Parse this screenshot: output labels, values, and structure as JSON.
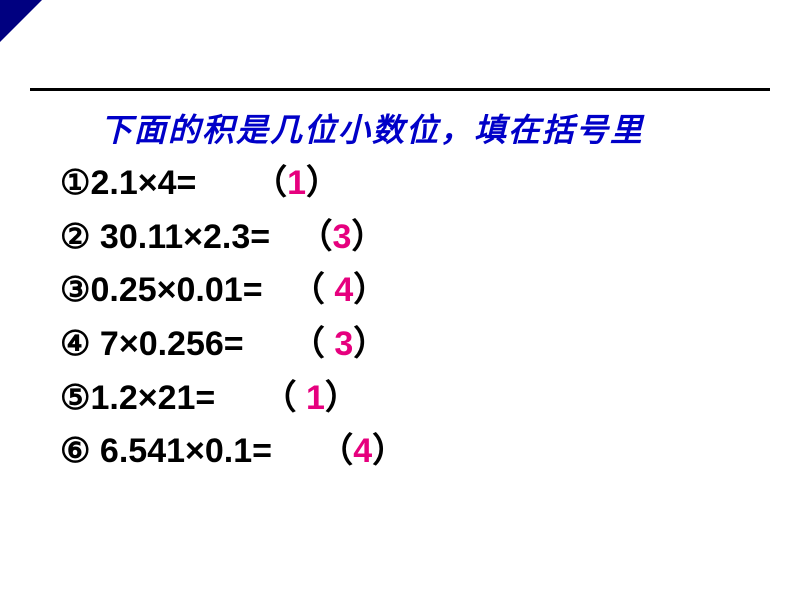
{
  "colors": {
    "title": "#0000c8",
    "answer": "#e6007e",
    "text": "#000000",
    "corner": "#000080",
    "rule": "#000000",
    "background": "#ffffff"
  },
  "typography": {
    "title_fontsize": 32,
    "row_fontsize": 34,
    "title_font": "SimSun italic bold",
    "row_font": "Heiti/YaHei bold"
  },
  "title": "下面的积是几位小数位，填在括号里",
  "problems": [
    {
      "marker": "①",
      "expr": "2.1×4=",
      "pad1": "      ",
      "lp": "（",
      "apad": "",
      "ans": "1",
      "rp": "）"
    },
    {
      "marker": "②",
      "expr": " 30.11×2.3=",
      "pad1": "   ",
      "lp": "（",
      "apad": "",
      "ans": "3",
      "rp": "）"
    },
    {
      "marker": "③",
      "expr": "0.25×0.01=",
      "pad1": "   ",
      "lp": "（",
      "apad": " ",
      "ans": "4",
      "rp": "）"
    },
    {
      "marker": "④",
      "expr": " 7×0.256=",
      "pad1": "     ",
      "lp": "（",
      "apad": " ",
      "ans": "3",
      "rp": "）"
    },
    {
      "marker": "⑤",
      "expr": "1.2×21=",
      "pad1": "     ",
      "lp": "（",
      "apad": " ",
      "ans": "1",
      "rp": "）"
    },
    {
      "marker": "⑥",
      "expr": " 6.541×0.1=",
      "pad1": "     ",
      "lp": "（",
      "apad": "",
      "ans": "4",
      "rp": "）"
    }
  ]
}
